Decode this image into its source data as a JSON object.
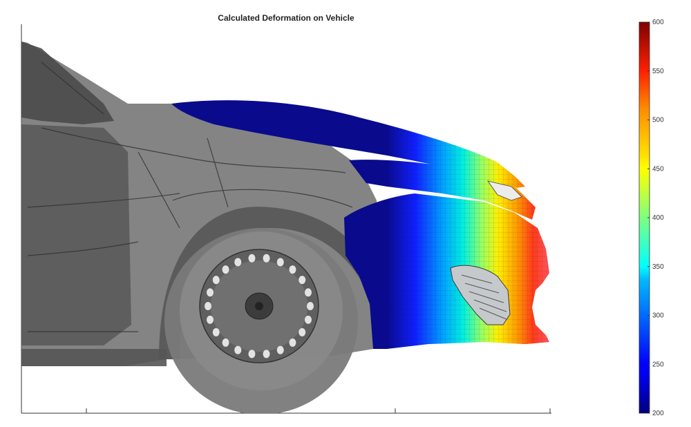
{
  "chart_data": {
    "type": "heatmap",
    "title": "Calculated Deformation on Vehicle",
    "xlabel": "",
    "ylabel": "",
    "colorbar": {
      "min": 200,
      "max": 600,
      "ticks": [
        200,
        250,
        300,
        350,
        400,
        450,
        500,
        550,
        600
      ],
      "colormap": "jet",
      "placement": "right"
    },
    "field_range": [
      200,
      600
    ],
    "grid": false
  }
}
